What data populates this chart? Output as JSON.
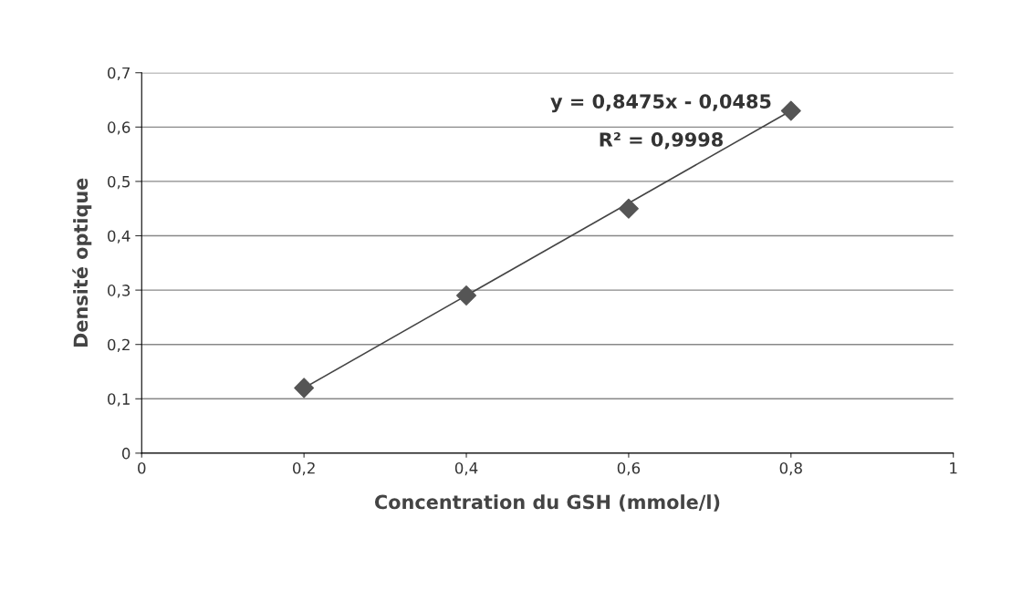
{
  "chart_data": {
    "type": "scatter",
    "xlabel": "Concentration du GSH (mmole/l)",
    "ylabel": "Densité optique",
    "series": [
      {
        "color": "#555555",
        "x": [
          0.2,
          0.4,
          0.6,
          0.8
        ],
        "values": [
          0.12,
          0.29,
          0.45,
          0.63
        ],
        "marker": "diamond"
      },
      {
        "type": "line",
        "color": "#444444",
        "x": [
          0.2,
          0.8
        ],
        "values": [
          0.12,
          0.63
        ],
        "marker": "none",
        "line_style": "solid"
      }
    ],
    "xlim": [
      0,
      1
    ],
    "ylim": [
      0,
      0.7
    ],
    "xticks": [
      0,
      {
        "value": 0.2,
        "label": "0,2"
      },
      {
        "value": 0.4,
        "label": "0,4"
      },
      {
        "value": 0.6,
        "label": "0,6"
      },
      {
        "value": 0.8,
        "label": "0,8"
      },
      1
    ],
    "yticks": [
      0,
      {
        "value": 0.1,
        "label": "0,1"
      },
      {
        "value": 0.2,
        "label": "0,2"
      },
      {
        "value": 0.3,
        "label": "0,3"
      },
      {
        "value": 0.4,
        "label": "0,4"
      },
      {
        "value": 0.5,
        "label": "0,5"
      },
      {
        "value": 0.6,
        "label": "0,6"
      },
      {
        "value": 0.7,
        "label": "0,7"
      }
    ],
    "grid": "y",
    "annotations": [
      "y = 0,8475x - 0,0485",
      "R² = 0,9998"
    ]
  }
}
